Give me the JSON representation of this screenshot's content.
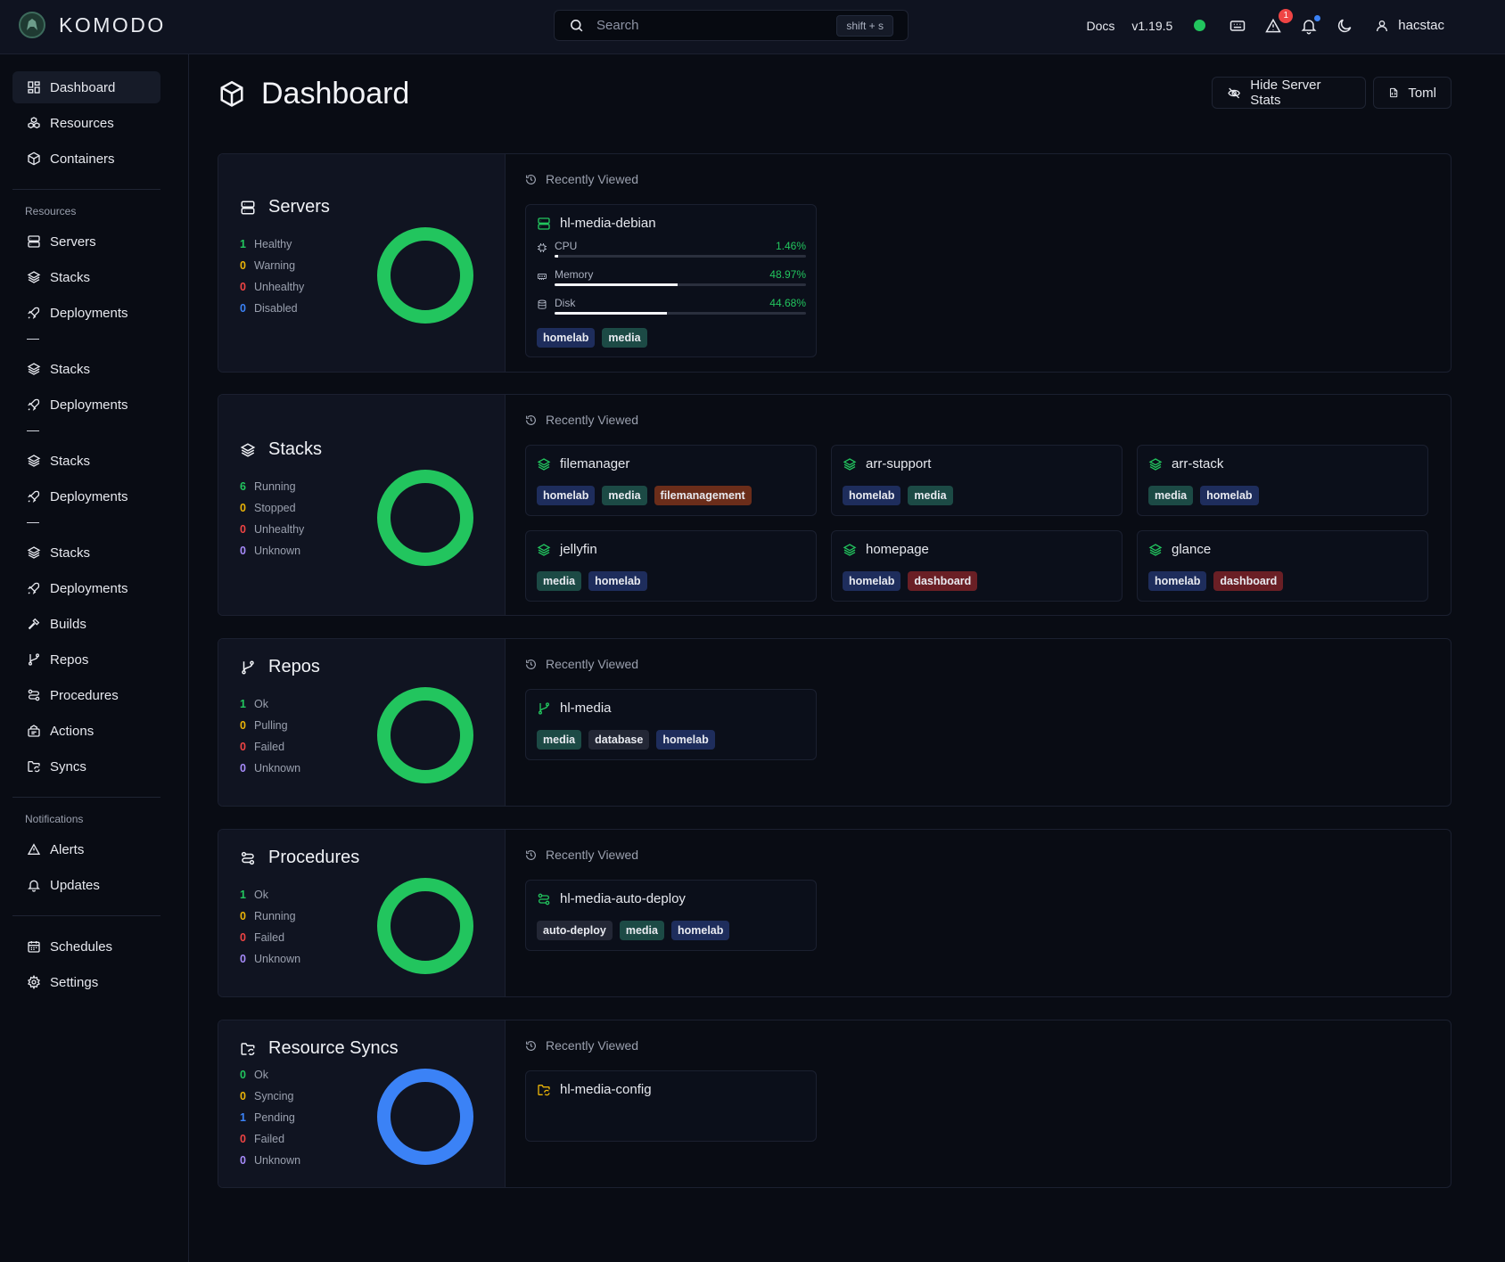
{
  "topbar": {
    "brand": "KOMODO",
    "search_placeholder": "Search",
    "search_shortcut": "shift + s",
    "docs": "Docs",
    "version": "v1.19.5",
    "alerts_count": "1",
    "username": "hacstac",
    "status_color": "#22c55e"
  },
  "sidebar": {
    "top_items": [
      {
        "label": "Dashboard",
        "icon": "dashboard-icon"
      },
      {
        "label": "Resources",
        "icon": "boxes-icon"
      },
      {
        "label": "Containers",
        "icon": "box-icon"
      }
    ],
    "resources_header": "Resources",
    "resource_items": [
      {
        "label": "Servers",
        "icon": "server-icon"
      },
      {
        "label": "Stacks",
        "icon": "layers-icon"
      },
      {
        "label": "Deployments",
        "icon": "rocket-icon"
      },
      {
        "label": "Stacks",
        "icon": "layers-icon"
      },
      {
        "label": "Deployments",
        "icon": "rocket-icon"
      },
      {
        "label": "Stacks",
        "icon": "layers-icon"
      },
      {
        "label": "Deployments",
        "icon": "rocket-icon"
      },
      {
        "label": "Stacks",
        "icon": "layers-icon"
      },
      {
        "label": "Deployments",
        "icon": "rocket-icon"
      },
      {
        "label": "Builds",
        "icon": "hammer-icon"
      },
      {
        "label": "Repos",
        "icon": "git-branch-icon"
      },
      {
        "label": "Procedures",
        "icon": "route-icon"
      },
      {
        "label": "Actions",
        "icon": "actions-icon"
      },
      {
        "label": "Syncs",
        "icon": "folder-sync-icon"
      }
    ],
    "notifications_header": "Notifications",
    "notification_items": [
      {
        "label": "Alerts",
        "icon": "alert-icon"
      },
      {
        "label": "Updates",
        "icon": "bell-icon"
      }
    ],
    "bottom_items": [
      {
        "label": "Schedules",
        "icon": "calendar-icon"
      },
      {
        "label": "Settings",
        "icon": "gear-icon"
      }
    ]
  },
  "page": {
    "title": "Dashboard",
    "hide_stats_label": "Hide Server Stats",
    "toml_label": "Toml"
  },
  "recently_viewed_label": "Recently Viewed",
  "sections": {
    "servers": {
      "title": "Servers",
      "stats": [
        {
          "count": "1",
          "label": "Healthy",
          "color": "#22c55e"
        },
        {
          "count": "0",
          "label": "Warning",
          "color": "#eab308"
        },
        {
          "count": "0",
          "label": "Unhealthy",
          "color": "#ef4444"
        },
        {
          "count": "0",
          "label": "Disabled",
          "color": "#3b82f6"
        }
      ],
      "donut_color": "#22c55e",
      "cards": [
        {
          "name": "hl-media-debian",
          "metrics": [
            {
              "label": "CPU",
              "value": "1.46%",
              "fraction": 0.0146
            },
            {
              "label": "Memory",
              "value": "48.97%",
              "fraction": 0.4897
            },
            {
              "label": "Disk",
              "value": "44.68%",
              "fraction": 0.4468
            }
          ],
          "tags": [
            "homelab",
            "media"
          ]
        }
      ]
    },
    "stacks": {
      "title": "Stacks",
      "stats": [
        {
          "count": "6",
          "label": "Running",
          "color": "#22c55e"
        },
        {
          "count": "0",
          "label": "Stopped",
          "color": "#eab308"
        },
        {
          "count": "0",
          "label": "Unhealthy",
          "color": "#ef4444"
        },
        {
          "count": "0",
          "label": "Unknown",
          "color": "#a78bfa"
        }
      ],
      "donut_color": "#22c55e",
      "cards": [
        {
          "name": "filemanager",
          "tags": [
            "homelab",
            "media",
            "filemanagement"
          ]
        },
        {
          "name": "arr-support",
          "tags": [
            "homelab",
            "media"
          ]
        },
        {
          "name": "arr-stack",
          "tags": [
            "media",
            "homelab"
          ]
        },
        {
          "name": "jellyfin",
          "tags": [
            "media",
            "homelab"
          ]
        },
        {
          "name": "homepage",
          "tags": [
            "homelab",
            "dashboard"
          ]
        },
        {
          "name": "glance",
          "tags": [
            "homelab",
            "dashboard"
          ]
        }
      ]
    },
    "repos": {
      "title": "Repos",
      "stats": [
        {
          "count": "1",
          "label": "Ok",
          "color": "#22c55e"
        },
        {
          "count": "0",
          "label": "Pulling",
          "color": "#eab308"
        },
        {
          "count": "0",
          "label": "Failed",
          "color": "#ef4444"
        },
        {
          "count": "0",
          "label": "Unknown",
          "color": "#a78bfa"
        }
      ],
      "donut_color": "#22c55e",
      "cards": [
        {
          "name": "hl-media",
          "tags": [
            "media",
            "database",
            "homelab"
          ]
        }
      ]
    },
    "procedures": {
      "title": "Procedures",
      "stats": [
        {
          "count": "1",
          "label": "Ok",
          "color": "#22c55e"
        },
        {
          "count": "0",
          "label": "Running",
          "color": "#eab308"
        },
        {
          "count": "0",
          "label": "Failed",
          "color": "#ef4444"
        },
        {
          "count": "0",
          "label": "Unknown",
          "color": "#a78bfa"
        }
      ],
      "donut_color": "#22c55e",
      "cards": [
        {
          "name": "hl-media-auto-deploy",
          "tags": [
            "auto-deploy",
            "media",
            "homelab"
          ]
        }
      ]
    },
    "syncs": {
      "title": "Resource Syncs",
      "stats": [
        {
          "count": "0",
          "label": "Ok",
          "color": "#22c55e"
        },
        {
          "count": "0",
          "label": "Syncing",
          "color": "#eab308"
        },
        {
          "count": "1",
          "label": "Pending",
          "color": "#3b82f6"
        },
        {
          "count": "0",
          "label": "Failed",
          "color": "#ef4444"
        },
        {
          "count": "0",
          "label": "Unknown",
          "color": "#a78bfa"
        }
      ],
      "donut_color": "#3b82f6",
      "cards": [
        {
          "name": "hl-media-config",
          "tags": []
        }
      ]
    }
  }
}
